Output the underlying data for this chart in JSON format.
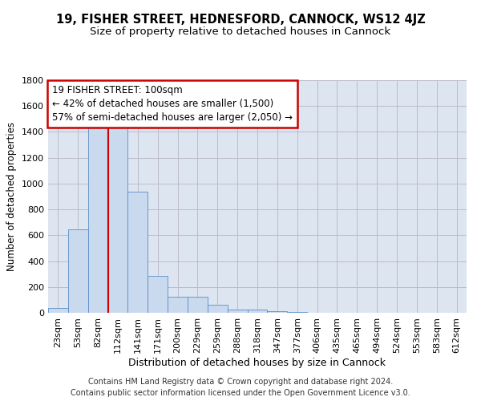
{
  "title1": "19, FISHER STREET, HEDNESFORD, CANNOCK, WS12 4JZ",
  "title2": "Size of property relative to detached houses in Cannock",
  "xlabel": "Distribution of detached houses by size in Cannock",
  "ylabel": "Number of detached properties",
  "categories": [
    "23sqm",
    "53sqm",
    "82sqm",
    "112sqm",
    "141sqm",
    "171sqm",
    "200sqm",
    "229sqm",
    "259sqm",
    "288sqm",
    "318sqm",
    "347sqm",
    "377sqm",
    "406sqm",
    "435sqm",
    "465sqm",
    "494sqm",
    "524sqm",
    "553sqm",
    "583sqm",
    "612sqm"
  ],
  "values": [
    35,
    645,
    1475,
    1475,
    940,
    285,
    125,
    125,
    60,
    25,
    25,
    10,
    8,
    0,
    0,
    0,
    0,
    0,
    0,
    0,
    0
  ],
  "bar_color": "#c9d9ee",
  "bar_edge_color": "#5b8dc8",
  "vline_color": "#cc0000",
  "annotation_line1": "19 FISHER STREET: 100sqm",
  "annotation_line2": "← 42% of detached houses are smaller (1,500)",
  "annotation_line3": "57% of semi-detached houses are larger (2,050) →",
  "annotation_box_color": "#ffffff",
  "annotation_box_edge": "#cc0000",
  "grid_color": "#bbbbcc",
  "bg_color": "#dde5f0",
  "ylim": [
    0,
    1800
  ],
  "yticks": [
    0,
    200,
    400,
    600,
    800,
    1000,
    1200,
    1400,
    1600,
    1800
  ],
  "footer1": "Contains HM Land Registry data © Crown copyright and database right 2024.",
  "footer2": "Contains public sector information licensed under the Open Government Licence v3.0.",
  "title1_fontsize": 10.5,
  "title2_fontsize": 9.5,
  "tick_fontsize": 8,
  "ylabel_fontsize": 8.5,
  "xlabel_fontsize": 9,
  "annotation_fontsize": 8.5,
  "footer_fontsize": 7
}
